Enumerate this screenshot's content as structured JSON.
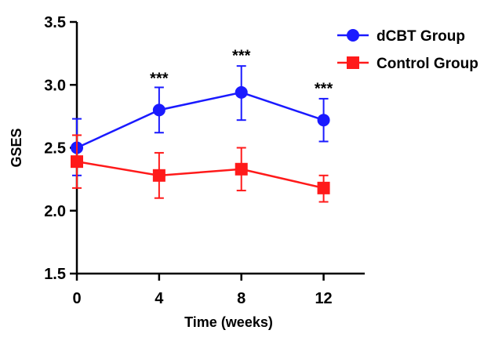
{
  "chart_data": {
    "type": "line",
    "xlabel": "Time (weeks)",
    "ylabel": "GSES",
    "x": [
      0,
      4,
      8,
      12
    ],
    "x_ticks": [
      "0",
      "4",
      "8",
      "12"
    ],
    "xlim": [
      0,
      14
    ],
    "ylim": [
      1.5,
      3.5
    ],
    "y_ticks": [
      "1.5",
      "2.0",
      "2.5",
      "3.0",
      "3.5"
    ],
    "y_tick_values": [
      1.5,
      2.0,
      2.5,
      3.0,
      3.5
    ],
    "grid": false,
    "legend_position": "top-right",
    "series": [
      {
        "name": "dCBT Group",
        "marker": "circle",
        "color": "#1a1aff",
        "values": [
          2.5,
          2.8,
          2.94,
          2.72
        ],
        "err_upper": [
          2.73,
          2.98,
          3.15,
          2.89
        ],
        "err_lower": [
          2.28,
          2.62,
          2.72,
          2.55
        ]
      },
      {
        "name": "Control Group",
        "marker": "square",
        "color": "#ff1a1a",
        "values": [
          2.39,
          2.28,
          2.33,
          2.18
        ],
        "err_upper": [
          2.6,
          2.46,
          2.5,
          2.28
        ],
        "err_lower": [
          2.18,
          2.1,
          2.16,
          2.07
        ]
      }
    ],
    "annotations": [
      {
        "x": 4,
        "y": 3.06,
        "text": "***"
      },
      {
        "x": 8,
        "y": 3.24,
        "text": "***"
      },
      {
        "x": 12,
        "y": 2.98,
        "text": "***"
      }
    ]
  }
}
